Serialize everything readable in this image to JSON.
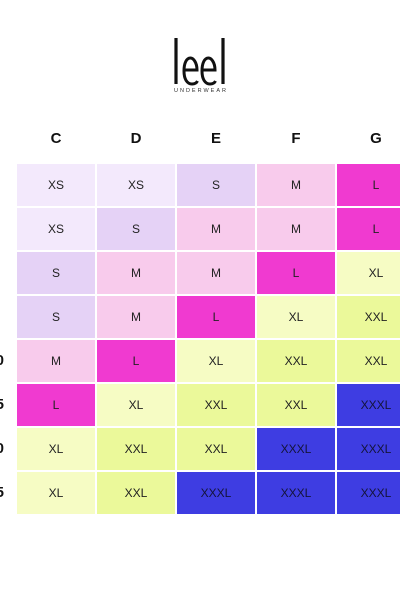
{
  "brand": {
    "logo_text": "leel",
    "tagline": "UNDERWEAR"
  },
  "columns": [
    "C",
    "D",
    "E",
    "F",
    "G"
  ],
  "row_labels": [
    "",
    "",
    "",
    "",
    "0",
    "5",
    "0",
    "5"
  ],
  "sizes_grid": [
    [
      "XS",
      "XS",
      "S",
      "M",
      "L"
    ],
    [
      "XS",
      "S",
      "M",
      "M",
      "L"
    ],
    [
      "S",
      "M",
      "M",
      "L",
      "XL"
    ],
    [
      "S",
      "M",
      "L",
      "XL",
      "XXL"
    ],
    [
      "M",
      "L",
      "XL",
      "XXL",
      "XXL"
    ],
    [
      "L",
      "XL",
      "XXL",
      "XXL",
      "XXXL"
    ],
    [
      "XL",
      "XXL",
      "XXL",
      "XXXL",
      "XXXL"
    ],
    [
      "XL",
      "XXL",
      "XXXL",
      "XXXL",
      "XXXL"
    ]
  ],
  "size_colors": {
    "XS": "#F3E9FC",
    "S": "#E5D2F6",
    "M": "#F8CBEC",
    "L": "#F03AD0",
    "XL": "#F6FCC4",
    "XXL": "#EBF99A",
    "XXXL": "#3E3DE2"
  }
}
